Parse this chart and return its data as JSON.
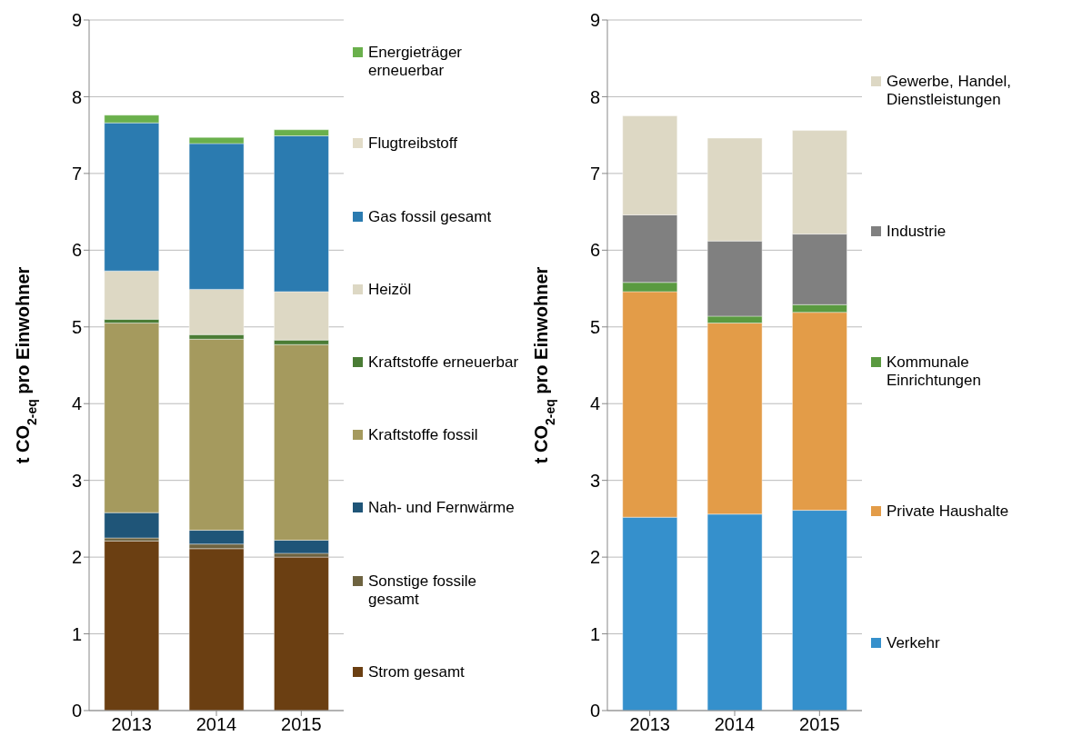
{
  "chart_data": [
    {
      "type": "bar",
      "stacked": true,
      "ylabel": "t CO$_{2-eq}$ pro Einwohner",
      "categories": [
        "2013",
        "2014",
        "2015"
      ],
      "ylim": [
        0,
        9
      ],
      "yticks": [
        0,
        1,
        2,
        3,
        4,
        5,
        6,
        7,
        8,
        9
      ],
      "grid": "y",
      "legend": "right",
      "series": [
        {
          "name": "Strom gesamt",
          "color": "#6b3f12",
          "values": [
            2.21,
            2.11,
            2.0
          ]
        },
        {
          "name": "Sonstige fossile gesamt",
          "color": "#6e6340",
          "values": [
            0.04,
            0.06,
            0.05
          ]
        },
        {
          "name": "Nah- und Fernwärme",
          "color": "#1f5578",
          "values": [
            0.33,
            0.18,
            0.17
          ]
        },
        {
          "name": "Kraftstoffe fossil",
          "color": "#a59a5e",
          "values": [
            2.47,
            2.49,
            2.55
          ]
        },
        {
          "name": "Kraftstoffe erneuerbar",
          "color": "#4a7c35",
          "values": [
            0.05,
            0.06,
            0.06
          ]
        },
        {
          "name": "Heizöl",
          "color": "#ddd8c4",
          "values": [
            0.63,
            0.59,
            0.63
          ]
        },
        {
          "name": "Gas fossil gesamt",
          "color": "#2b7bb0",
          "values": [
            1.93,
            1.9,
            2.03
          ]
        },
        {
          "name": "Flugtreibstoff",
          "color": "#e2dcc8",
          "values": [
            0,
            0,
            0
          ]
        },
        {
          "name": "Energieträger erneuerbar",
          "color": "#6ab04c",
          "values": [
            0.1,
            0.08,
            0.08
          ]
        }
      ]
    },
    {
      "type": "bar",
      "stacked": true,
      "ylabel": "t CO$_{2-eq}$ pro Einwohner",
      "categories": [
        "2013",
        "2014",
        "2015"
      ],
      "ylim": [
        0,
        9
      ],
      "yticks": [
        0,
        1,
        2,
        3,
        4,
        5,
        6,
        7,
        8,
        9
      ],
      "grid": "y",
      "legend": "right",
      "series": [
        {
          "name": "Verkehr",
          "color": "#3590cc",
          "values": [
            2.52,
            2.56,
            2.61
          ]
        },
        {
          "name": "Private Haushalte",
          "color": "#e39c48",
          "values": [
            2.94,
            2.49,
            2.58
          ]
        },
        {
          "name": "Kommunale Einrichtungen",
          "color": "#5a9a40",
          "values": [
            0.12,
            0.09,
            0.1
          ]
        },
        {
          "name": "Industrie",
          "color": "#808080",
          "values": [
            0.88,
            0.98,
            0.92
          ]
        },
        {
          "name": "Gewerbe, Handel, Dienstleistungen",
          "color": "#ddd8c4",
          "values": [
            1.29,
            1.34,
            1.35
          ]
        }
      ]
    }
  ]
}
